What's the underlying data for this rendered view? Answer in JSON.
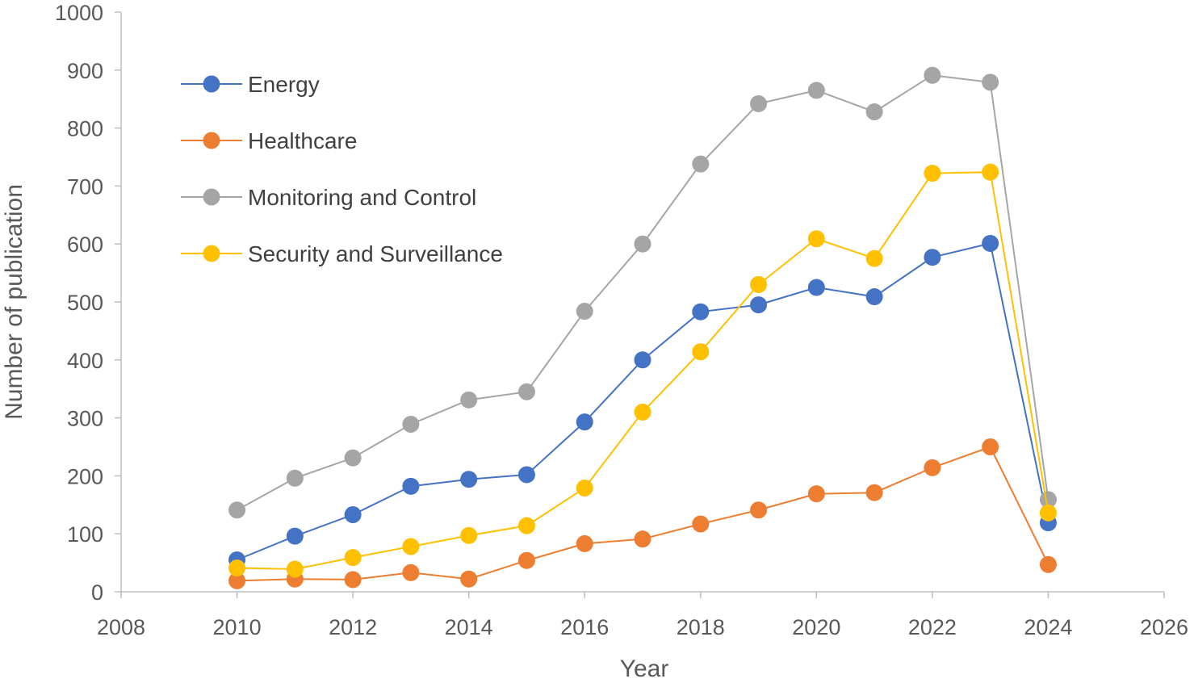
{
  "chart_data": {
    "type": "line",
    "title": "",
    "xlabel": "Year",
    "ylabel": "Number of publication",
    "xlim": [
      2008,
      2026
    ],
    "ylim": [
      0,
      1000
    ],
    "x_ticks": [
      2008,
      2010,
      2012,
      2014,
      2016,
      2018,
      2020,
      2022,
      2024,
      2026
    ],
    "y_ticks": [
      0,
      100,
      200,
      300,
      400,
      500,
      600,
      700,
      800,
      900,
      1000
    ],
    "grid": false,
    "legend_position": "top-left",
    "x": [
      2010,
      2011,
      2012,
      2013,
      2014,
      2015,
      2016,
      2017,
      2018,
      2019,
      2020,
      2021,
      2022,
      2023,
      2024
    ],
    "series": [
      {
        "name": "Energy",
        "color": "#4472C4",
        "values": [
          55,
          96,
          133,
          182,
          194,
          202,
          293,
          400,
          483,
          495,
          525,
          509,
          577,
          601,
          119
        ]
      },
      {
        "name": "Healthcare",
        "color": "#ED7D31",
        "values": [
          19,
          22,
          21,
          33,
          22,
          54,
          83,
          91,
          117,
          141,
          169,
          171,
          214,
          250,
          47
        ]
      },
      {
        "name": "Monitoring and Control",
        "color": "#A5A5A5",
        "values": [
          141,
          196,
          231,
          289,
          331,
          345,
          484,
          600,
          738,
          842,
          865,
          828,
          891,
          879,
          159
        ]
      },
      {
        "name": "Security and Surveillance",
        "color": "#FFC000",
        "values": [
          41,
          39,
          59,
          78,
          97,
          114,
          179,
          310,
          414,
          530,
          609,
          575,
          722,
          724,
          136
        ]
      }
    ]
  }
}
